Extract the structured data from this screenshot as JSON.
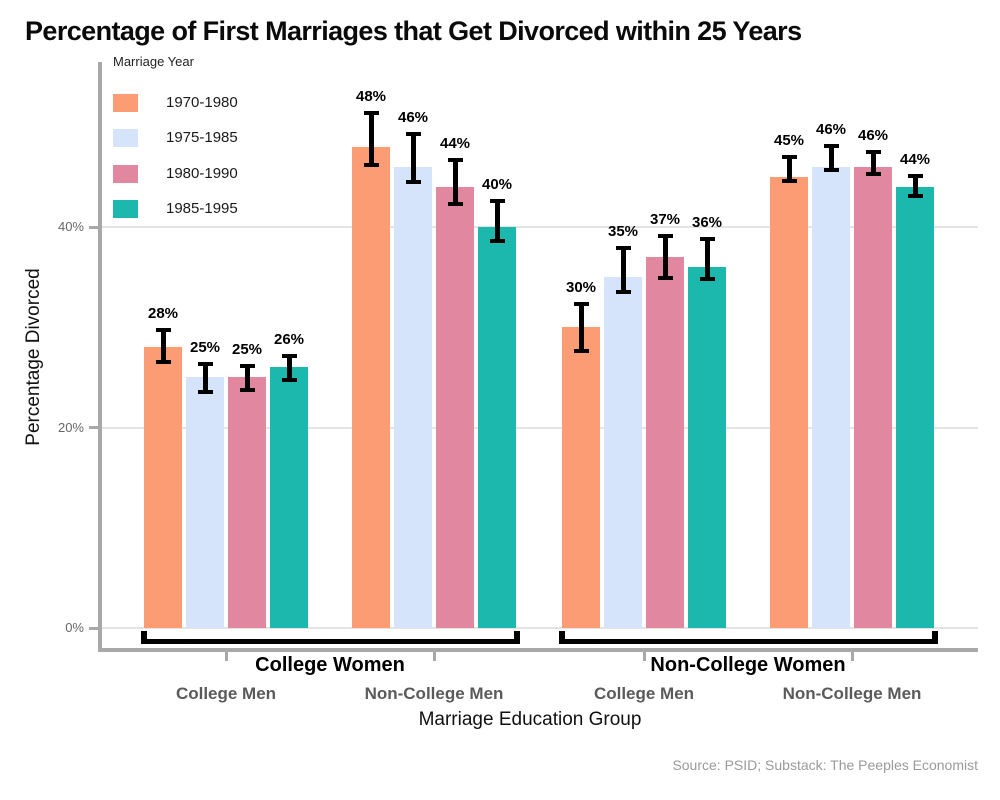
{
  "title": "Percentage of First Marriages that Get Divorced within 25 Years",
  "caption": "Source: PSID; Substack: The Peeples Economist",
  "legend": {
    "title": "Marriage Year",
    "items": [
      {
        "label": "1970-1980",
        "color": "#FB9C75"
      },
      {
        "label": "1975-1985",
        "color": "#D5E4FA"
      },
      {
        "label": "1980-1990",
        "color": "#E287A0"
      },
      {
        "label": "1985-1995",
        "color": "#1CB8AE"
      }
    ]
  },
  "chart_data": {
    "type": "bar",
    "title": "Percentage of First Marriages that Get Divorced within 25 Years",
    "xlabel": "Marriage Education Group",
    "ylabel": "Percentage Divorced",
    "ylim": [
      0,
      56
    ],
    "yticks": [
      0,
      20,
      40
    ],
    "ytick_labels": [
      "0%",
      "20%",
      "40%"
    ],
    "grid": true,
    "legend_position": "top-left",
    "value_suffix": "%",
    "x": {
      "top_labels": [
        "College Women",
        "Non-College Women"
      ],
      "sub_labels": [
        "College Men",
        "Non-College Men",
        "College Men",
        "Non-College Men"
      ]
    },
    "series": [
      {
        "name": "1970-1980",
        "color": "#FB9C75",
        "values": [
          28,
          48,
          30,
          45
        ],
        "error_low": [
          26.5,
          46.2,
          27.6,
          44.6
        ],
        "error_high": [
          29.7,
          51.4,
          32.3,
          47.0
        ]
      },
      {
        "name": "1975-1985",
        "color": "#D5E4FA",
        "values": [
          25,
          46,
          35,
          46
        ],
        "error_low": [
          23.5,
          44.5,
          33.5,
          45.7
        ],
        "error_high": [
          26.3,
          49.3,
          37.9,
          48.1
        ]
      },
      {
        "name": "1980-1990",
        "color": "#E287A0",
        "values": [
          25,
          44,
          37,
          46
        ],
        "error_low": [
          23.7,
          42.3,
          34.9,
          45.3
        ],
        "error_high": [
          26.1,
          46.7,
          39.1,
          47.5
        ]
      },
      {
        "name": "1985-1995",
        "color": "#1CB8AE",
        "values": [
          26,
          40,
          36,
          44
        ],
        "error_low": [
          24.7,
          38.6,
          34.8,
          43.1
        ],
        "error_high": [
          27.1,
          42.6,
          38.8,
          45.1
        ]
      }
    ]
  }
}
